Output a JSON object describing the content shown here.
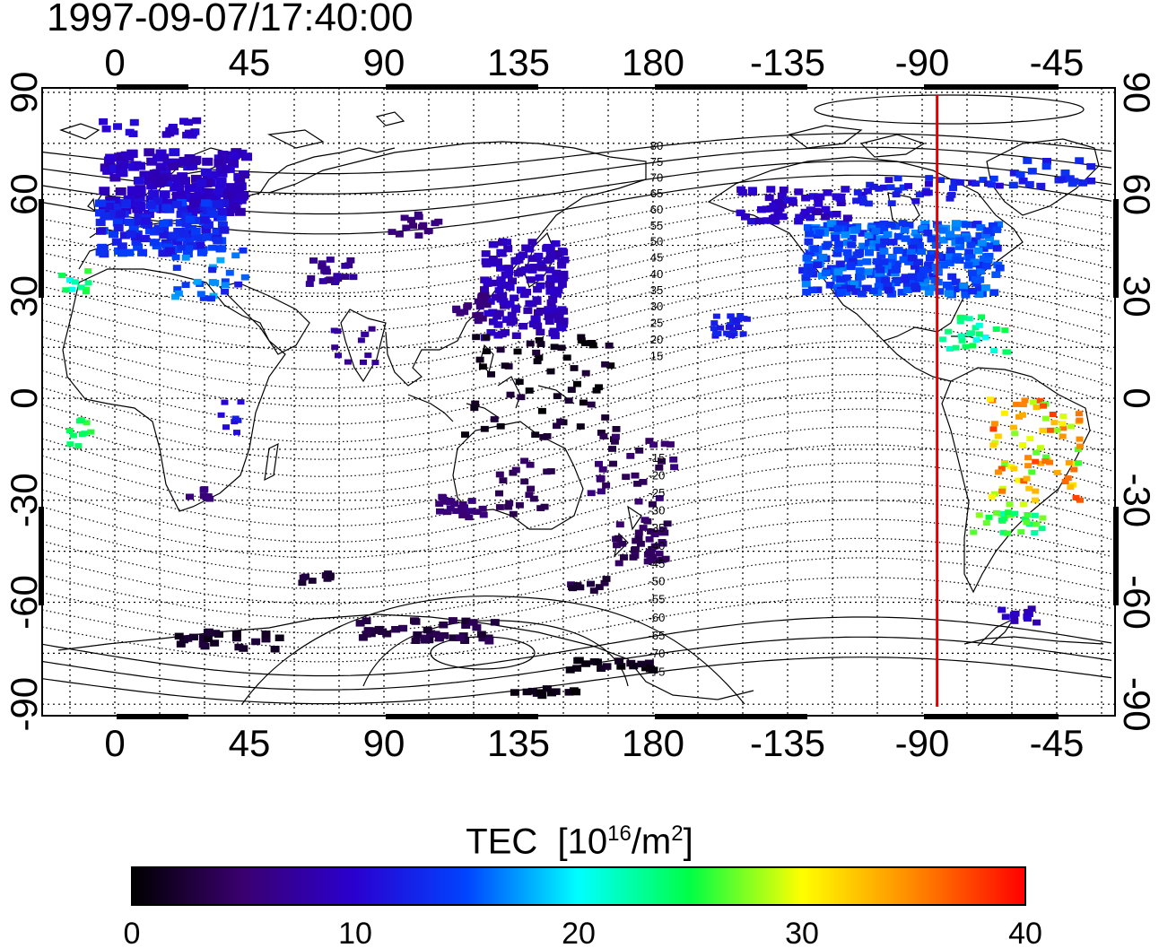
{
  "title": "1997-09-07/17:40:00",
  "map": {
    "lon_ticks": [
      "0",
      "45",
      "90",
      "135",
      "180",
      "-135",
      "-90",
      "-45"
    ],
    "lat_ticks": [
      "90",
      "60",
      "30",
      "0",
      "-30",
      "-60",
      "-90"
    ],
    "grid": true,
    "marker_longitude": -85,
    "marker_color": "#e00000",
    "magnetic_contour_labels": [
      "80",
      "75",
      "70",
      "65",
      "60",
      "55",
      "50",
      "45",
      "40",
      "35",
      "30",
      "25",
      "20",
      "15",
      "-15",
      "-20",
      "-25",
      "-30",
      "-35",
      "-40",
      "-45",
      "-50",
      "-55",
      "-60",
      "-65",
      "-70",
      "-75"
    ]
  },
  "colorbar": {
    "label_main": "TEC",
    "label_unit_prefix": "[10",
    "label_unit_exp1": "16",
    "label_unit_mid": "/m",
    "label_unit_exp2": "2",
    "label_unit_suffix": "]",
    "ticks": [
      "0",
      "10",
      "20",
      "30",
      "40"
    ],
    "min": 0,
    "max": 40,
    "colors": [
      "#000000",
      "#3a0070",
      "#2a00d0",
      "#0044ff",
      "#00ffff",
      "#00ff44",
      "#ffff00",
      "#ff8800",
      "#ff0000"
    ]
  }
}
